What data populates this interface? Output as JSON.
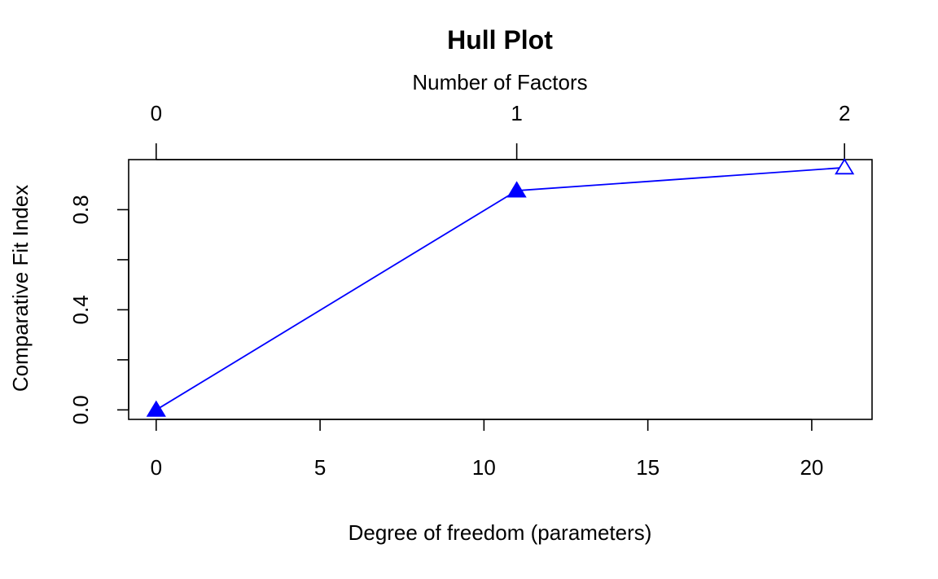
{
  "chart_data": {
    "type": "line",
    "title": "Hull Plot",
    "xlabel": "Degree of freedom (parameters)",
    "ylabel": "Comparative Fit Index",
    "top_axis_label": "Number of Factors",
    "xlim": [
      -0.84,
      21.84
    ],
    "ylim": [
      -0.038,
      1.0
    ],
    "x_ticks": [
      0,
      5,
      10,
      15,
      20
    ],
    "x_tick_labels": [
      "0",
      "5",
      "10",
      "15",
      "20"
    ],
    "y_ticks": [
      0.0,
      0.2,
      0.4,
      0.6,
      0.8
    ],
    "y_tick_labels": [
      "0.0",
      "",
      "0.4",
      "",
      "0.8"
    ],
    "top_ticks": [
      0,
      11,
      21
    ],
    "top_tick_labels": [
      "0",
      "1",
      "2"
    ],
    "series": [
      {
        "x": [
          0,
          11,
          21
        ],
        "y": [
          0.0,
          0.876,
          0.968
        ],
        "markers": [
          "filled-triangle",
          "filled-triangle",
          "open-triangle"
        ],
        "color": "#0000ff"
      }
    ],
    "grid": false,
    "legend": "none"
  }
}
